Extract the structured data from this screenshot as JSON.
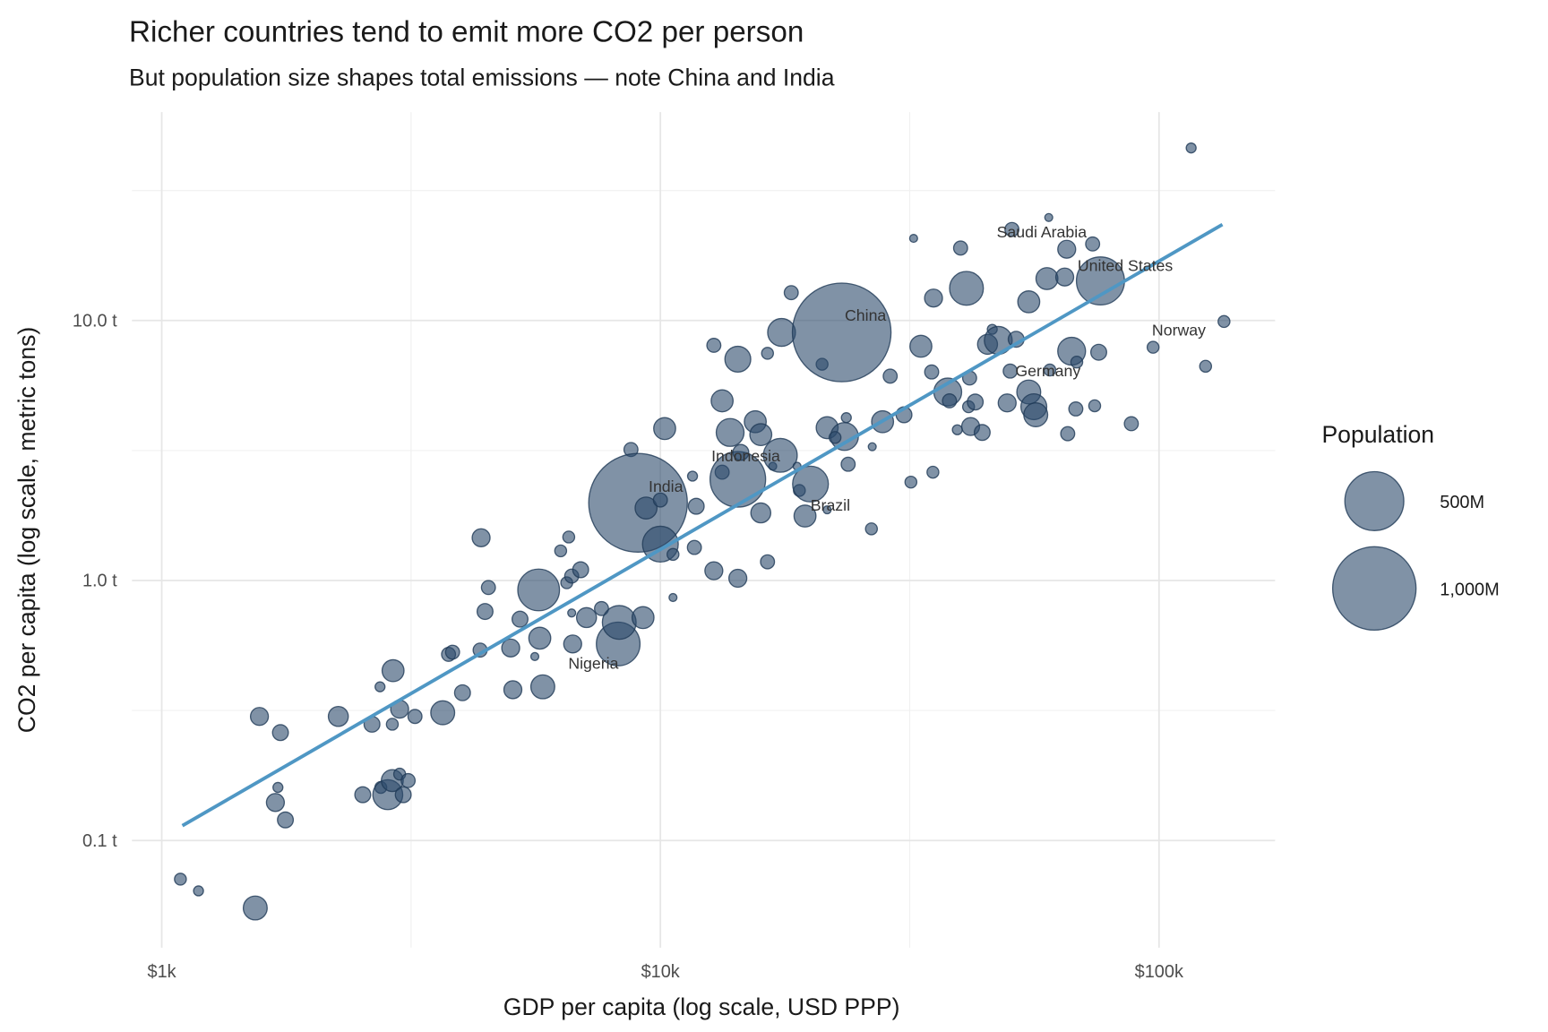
{
  "chart_data": {
    "type": "scatter",
    "title": "Richer countries tend to emit more CO2 per person",
    "subtitle": "But population size shapes total emissions — note China and India",
    "xlabel": "GDP per capita (log scale, USD PPP)",
    "ylabel": "CO2 per capita (log scale, metric tons)",
    "x_scale": "log10",
    "y_scale": "log10",
    "xlim": [
      870,
      171000
    ],
    "ylim": [
      0.039,
      63
    ],
    "grid": true,
    "x_ticks": [
      {
        "value": 1000,
        "label": "$1k"
      },
      {
        "value": 10000,
        "label": "$10k"
      },
      {
        "value": 100000,
        "label": "$100k"
      }
    ],
    "y_ticks": [
      {
        "value": 0.1,
        "label": "0.1 t"
      },
      {
        "value": 1,
        "label": "1.0 t"
      },
      {
        "value": 10,
        "label": "10.0 t"
      }
    ],
    "point_color": "#2c4a6b",
    "trend_color": "#4f97c4",
    "trend_line": {
      "x": [
        1100,
        134000
      ],
      "y": [
        0.114,
        23.4
      ]
    },
    "legend": {
      "title": "Population",
      "position": "right",
      "entries": [
        {
          "value": 500,
          "label": "500M"
        },
        {
          "value": 1000,
          "label": "1,000M"
        }
      ]
    },
    "points": [
      {
        "gdp": 1090,
        "co2": 0.071,
        "pop": 20
      },
      {
        "gdp": 1185,
        "co2": 0.064,
        "pop": 14
      },
      {
        "gdp": 1540,
        "co2": 0.055,
        "pop": 82
      },
      {
        "gdp": 1570,
        "co2": 0.3,
        "pop": 46
      },
      {
        "gdp": 1730,
        "co2": 0.26,
        "pop": 36
      },
      {
        "gdp": 1710,
        "co2": 0.16,
        "pop": 14
      },
      {
        "gdp": 1690,
        "co2": 0.14,
        "pop": 46
      },
      {
        "gdp": 1770,
        "co2": 0.12,
        "pop": 36
      },
      {
        "gdp": 2260,
        "co2": 0.3,
        "pop": 57
      },
      {
        "gdp": 2530,
        "co2": 0.15,
        "pop": 36
      },
      {
        "gdp": 2640,
        "co2": 0.28,
        "pop": 36
      },
      {
        "gdp": 2740,
        "co2": 0.39,
        "pop": 14
      },
      {
        "gdp": 2750,
        "co2": 0.16,
        "pop": 20
      },
      {
        "gdp": 2840,
        "co2": 0.15,
        "pop": 128
      },
      {
        "gdp": 2910,
        "co2": 0.45,
        "pop": 69
      },
      {
        "gdp": 2900,
        "co2": 0.17,
        "pop": 69
      },
      {
        "gdp": 2900,
        "co2": 0.28,
        "pop": 20
      },
      {
        "gdp": 3000,
        "co2": 0.32,
        "pop": 46
      },
      {
        "gdp": 3000,
        "co2": 0.18,
        "pop": 20
      },
      {
        "gdp": 3050,
        "co2": 0.15,
        "pop": 36
      },
      {
        "gdp": 3120,
        "co2": 0.17,
        "pop": 28
      },
      {
        "gdp": 3220,
        "co2": 0.3,
        "pop": 28
      },
      {
        "gdp": 3660,
        "co2": 0.31,
        "pop": 82
      },
      {
        "gdp": 3760,
        "co2": 0.52,
        "pop": 28
      },
      {
        "gdp": 3830,
        "co2": 0.53,
        "pop": 28
      },
      {
        "gdp": 4010,
        "co2": 0.37,
        "pop": 36
      },
      {
        "gdp": 4370,
        "co2": 1.46,
        "pop": 46
      },
      {
        "gdp": 4350,
        "co2": 0.54,
        "pop": 28
      },
      {
        "gdp": 4450,
        "co2": 0.76,
        "pop": 36
      },
      {
        "gdp": 4520,
        "co2": 0.94,
        "pop": 28
      },
      {
        "gdp": 5010,
        "co2": 0.55,
        "pop": 46
      },
      {
        "gdp": 5060,
        "co2": 0.38,
        "pop": 46
      },
      {
        "gdp": 5230,
        "co2": 0.71,
        "pop": 36
      },
      {
        "gdp": 5700,
        "co2": 0.92,
        "pop": 250
      },
      {
        "gdp": 5730,
        "co2": 0.6,
        "pop": 69
      },
      {
        "gdp": 5810,
        "co2": 0.39,
        "pop": 82
      },
      {
        "gdp": 5600,
        "co2": 0.51,
        "pop": 9
      },
      {
        "gdp": 6310,
        "co2": 1.3,
        "pop": 20
      },
      {
        "gdp": 6550,
        "co2": 1.47,
        "pop": 20
      },
      {
        "gdp": 6490,
        "co2": 0.98,
        "pop": 20
      },
      {
        "gdp": 6640,
        "co2": 1.04,
        "pop": 28
      },
      {
        "gdp": 6920,
        "co2": 1.1,
        "pop": 36
      },
      {
        "gdp": 6640,
        "co2": 0.75,
        "pop": 9
      },
      {
        "gdp": 7110,
        "co2": 0.72,
        "pop": 57
      },
      {
        "gdp": 6670,
        "co2": 0.57,
        "pop": 46
      },
      {
        "gdp": 7620,
        "co2": 0.78,
        "pop": 28
      },
      {
        "gdp": 8230,
        "co2": 0.57,
        "pop": 274,
        "label": "Nigeria"
      },
      {
        "gdp": 8270,
        "co2": 0.69,
        "pop": 164
      },
      {
        "gdp": 9230,
        "co2": 0.72,
        "pop": 69
      },
      {
        "gdp": 8730,
        "co2": 3.19,
        "pop": 28
      },
      {
        "gdp": 9020,
        "co2": 1.99,
        "pop": 1400,
        "label": "India"
      },
      {
        "gdp": 9360,
        "co2": 1.9,
        "pop": 69
      },
      {
        "gdp": 10000,
        "co2": 2.04,
        "pop": 28
      },
      {
        "gdp": 10200,
        "co2": 3.84,
        "pop": 69
      },
      {
        "gdp": 10000,
        "co2": 1.38,
        "pop": 184
      },
      {
        "gdp": 10600,
        "co2": 1.26,
        "pop": 20
      },
      {
        "gdp": 10600,
        "co2": 0.86,
        "pop": 9
      },
      {
        "gdp": 11600,
        "co2": 2.52,
        "pop": 14
      },
      {
        "gdp": 11700,
        "co2": 1.34,
        "pop": 28
      },
      {
        "gdp": 11800,
        "co2": 1.93,
        "pop": 36
      },
      {
        "gdp": 12800,
        "co2": 1.09,
        "pop": 46
      },
      {
        "gdp": 12800,
        "co2": 8.03,
        "pop": 28
      },
      {
        "gdp": 13300,
        "co2": 2.61,
        "pop": 28
      },
      {
        "gdp": 13300,
        "co2": 4.91,
        "pop": 69
      },
      {
        "gdp": 13800,
        "co2": 3.71,
        "pop": 111
      },
      {
        "gdp": 14300,
        "co2": 2.45,
        "pop": 444,
        "label": "Indonesia"
      },
      {
        "gdp": 14300,
        "co2": 7.1,
        "pop": 96
      },
      {
        "gdp": 14300,
        "co2": 1.02,
        "pop": 46
      },
      {
        "gdp": 14500,
        "co2": 3.11,
        "pop": 36
      },
      {
        "gdp": 15500,
        "co2": 4.08,
        "pop": 69
      },
      {
        "gdp": 15900,
        "co2": 3.64,
        "pop": 69
      },
      {
        "gdp": 15900,
        "co2": 1.82,
        "pop": 57
      },
      {
        "gdp": 16400,
        "co2": 7.48,
        "pop": 20
      },
      {
        "gdp": 16400,
        "co2": 1.18,
        "pop": 28
      },
      {
        "gdp": 16800,
        "co2": 2.75,
        "pop": 9
      },
      {
        "gdp": 17400,
        "co2": 3.03,
        "pop": 164
      },
      {
        "gdp": 17500,
        "co2": 9.0,
        "pop": 111
      },
      {
        "gdp": 18300,
        "co2": 12.8,
        "pop": 28
      },
      {
        "gdp": 18800,
        "co2": 2.75,
        "pop": 9
      },
      {
        "gdp": 19000,
        "co2": 2.22,
        "pop": 20
      },
      {
        "gdp": 19500,
        "co2": 1.77,
        "pop": 69
      },
      {
        "gdp": 20000,
        "co2": 2.35,
        "pop": 184,
        "label": "Brazil"
      },
      {
        "gdp": 21100,
        "co2": 6.79,
        "pop": 20
      },
      {
        "gdp": 21600,
        "co2": 1.87,
        "pop": 9
      },
      {
        "gdp": 21600,
        "co2": 3.87,
        "pop": 69
      },
      {
        "gdp": 23100,
        "co2": 9.0,
        "pop": 1400,
        "label": "China"
      },
      {
        "gdp": 23400,
        "co2": 3.58,
        "pop": 111
      },
      {
        "gdp": 23800,
        "co2": 2.8,
        "pop": 28
      },
      {
        "gdp": 23600,
        "co2": 4.23,
        "pop": 14
      },
      {
        "gdp": 22400,
        "co2": 3.55,
        "pop": 20
      },
      {
        "gdp": 26500,
        "co2": 1.58,
        "pop": 20
      },
      {
        "gdp": 26600,
        "co2": 3.27,
        "pop": 9
      },
      {
        "gdp": 27900,
        "co2": 4.08,
        "pop": 69
      },
      {
        "gdp": 28900,
        "co2": 6.11,
        "pop": 28
      },
      {
        "gdp": 30800,
        "co2": 4.34,
        "pop": 36
      },
      {
        "gdp": 31800,
        "co2": 2.39,
        "pop": 20
      },
      {
        "gdp": 32200,
        "co2": 20.7,
        "pop": 9
      },
      {
        "gdp": 33300,
        "co2": 7.96,
        "pop": 69
      },
      {
        "gdp": 35000,
        "co2": 6.34,
        "pop": 28
      },
      {
        "gdp": 35200,
        "co2": 2.61,
        "pop": 20
      },
      {
        "gdp": 35300,
        "co2": 12.2,
        "pop": 46
      },
      {
        "gdp": 37700,
        "co2": 5.31,
        "pop": 111
      },
      {
        "gdp": 38000,
        "co2": 4.91,
        "pop": 28
      },
      {
        "gdp": 39400,
        "co2": 3.8,
        "pop": 14
      },
      {
        "gdp": 40000,
        "co2": 19.0,
        "pop": 28
      },
      {
        "gdp": 41100,
        "co2": 13.3,
        "pop": 164
      },
      {
        "gdp": 41700,
        "co2": 6.01,
        "pop": 28
      },
      {
        "gdp": 41900,
        "co2": 3.91,
        "pop": 46
      },
      {
        "gdp": 41500,
        "co2": 4.66,
        "pop": 20
      },
      {
        "gdp": 42800,
        "co2": 4.86,
        "pop": 36
      },
      {
        "gdp": 44200,
        "co2": 3.71,
        "pop": 36
      },
      {
        "gdp": 45300,
        "co2": 8.1,
        "pop": 57
      },
      {
        "gdp": 46300,
        "co2": 9.25,
        "pop": 14
      },
      {
        "gdp": 47600,
        "co2": 8.39,
        "pop": 111
      },
      {
        "gdp": 50300,
        "co2": 6.39,
        "pop": 28,
        "label": "Germany"
      },
      {
        "gdp": 50700,
        "co2": 22.4,
        "pop": 28,
        "label": "Saudi Arabia"
      },
      {
        "gdp": 51700,
        "co2": 8.47,
        "pop": 36
      },
      {
        "gdp": 49600,
        "co2": 4.82,
        "pop": 46
      },
      {
        "gdp": 54800,
        "co2": 5.31,
        "pop": 82
      },
      {
        "gdp": 54800,
        "co2": 11.8,
        "pop": 69
      },
      {
        "gdp": 56100,
        "co2": 4.66,
        "pop": 96
      },
      {
        "gdp": 56600,
        "co2": 4.34,
        "pop": 82
      },
      {
        "gdp": 59600,
        "co2": 14.5,
        "pop": 69
      },
      {
        "gdp": 60100,
        "co2": 24.9,
        "pop": 9
      },
      {
        "gdp": 60400,
        "co2": 6.45,
        "pop": 20
      },
      {
        "gdp": 64700,
        "co2": 14.7,
        "pop": 46
      },
      {
        "gdp": 65300,
        "co2": 18.8,
        "pop": 46
      },
      {
        "gdp": 65600,
        "co2": 3.67,
        "pop": 28
      },
      {
        "gdp": 66800,
        "co2": 7.62,
        "pop": 111
      },
      {
        "gdp": 68100,
        "co2": 4.57,
        "pop": 28
      },
      {
        "gdp": 68400,
        "co2": 6.92,
        "pop": 20
      },
      {
        "gdp": 76300,
        "co2": 14.2,
        "pop": 332,
        "label": "United States"
      },
      {
        "gdp": 73600,
        "co2": 19.7,
        "pop": 28
      },
      {
        "gdp": 74300,
        "co2": 4.7,
        "pop": 20
      },
      {
        "gdp": 75700,
        "co2": 7.55,
        "pop": 36
      },
      {
        "gdp": 88000,
        "co2": 4.01,
        "pop": 28
      },
      {
        "gdp": 97300,
        "co2": 7.89,
        "pop": 20,
        "label": "Norway"
      },
      {
        "gdp": 116000,
        "co2": 46.1,
        "pop": 14
      },
      {
        "gdp": 124000,
        "co2": 6.67,
        "pop": 20
      },
      {
        "gdp": 135000,
        "co2": 9.91,
        "pop": 20
      }
    ]
  }
}
